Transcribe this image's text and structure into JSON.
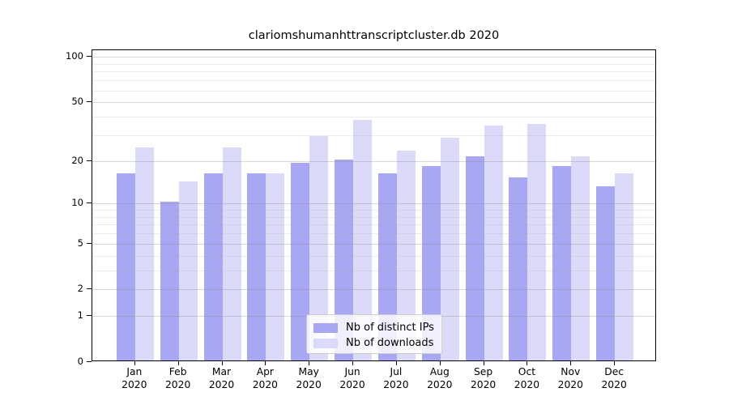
{
  "title": "clariomshumanhttranscriptcluster.db 2020",
  "chart_data": {
    "type": "bar",
    "title": "clariomshumanhttranscriptcluster.db 2020",
    "categories": [
      "Jan",
      "Feb",
      "Mar",
      "Apr",
      "May",
      "Jun",
      "Jul",
      "Aug",
      "Sep",
      "Oct",
      "Nov",
      "Dec"
    ],
    "year_label": "2020",
    "series": [
      {
        "name": "Nb of distinct IPs",
        "color": "#A7A7F3",
        "values": [
          16,
          10,
          16,
          16,
          19,
          20,
          16,
          18,
          21,
          15,
          18,
          13
        ]
      },
      {
        "name": "Nb of downloads",
        "color": "#DBDBF9",
        "values": [
          24,
          14,
          24,
          16,
          29,
          37,
          23,
          28,
          34,
          35,
          21,
          16
        ]
      }
    ],
    "y_scale": "log1p",
    "y_ticks": [
      0,
      1,
      2,
      5,
      10,
      20,
      50,
      100
    ],
    "y_minor_gridlines": [
      3,
      4,
      6,
      7,
      8,
      9,
      30,
      40,
      60,
      70,
      80,
      90
    ],
    "ylim": [
      0,
      111
    ],
    "xlabel": "",
    "ylabel": "",
    "grid": true,
    "legend_position": "bottom-center",
    "axis_color": "#000000",
    "background_color": "#ffffff"
  },
  "legend": {
    "items": [
      {
        "label": "Nb of distinct IPs"
      },
      {
        "label": "Nb of downloads"
      }
    ]
  }
}
